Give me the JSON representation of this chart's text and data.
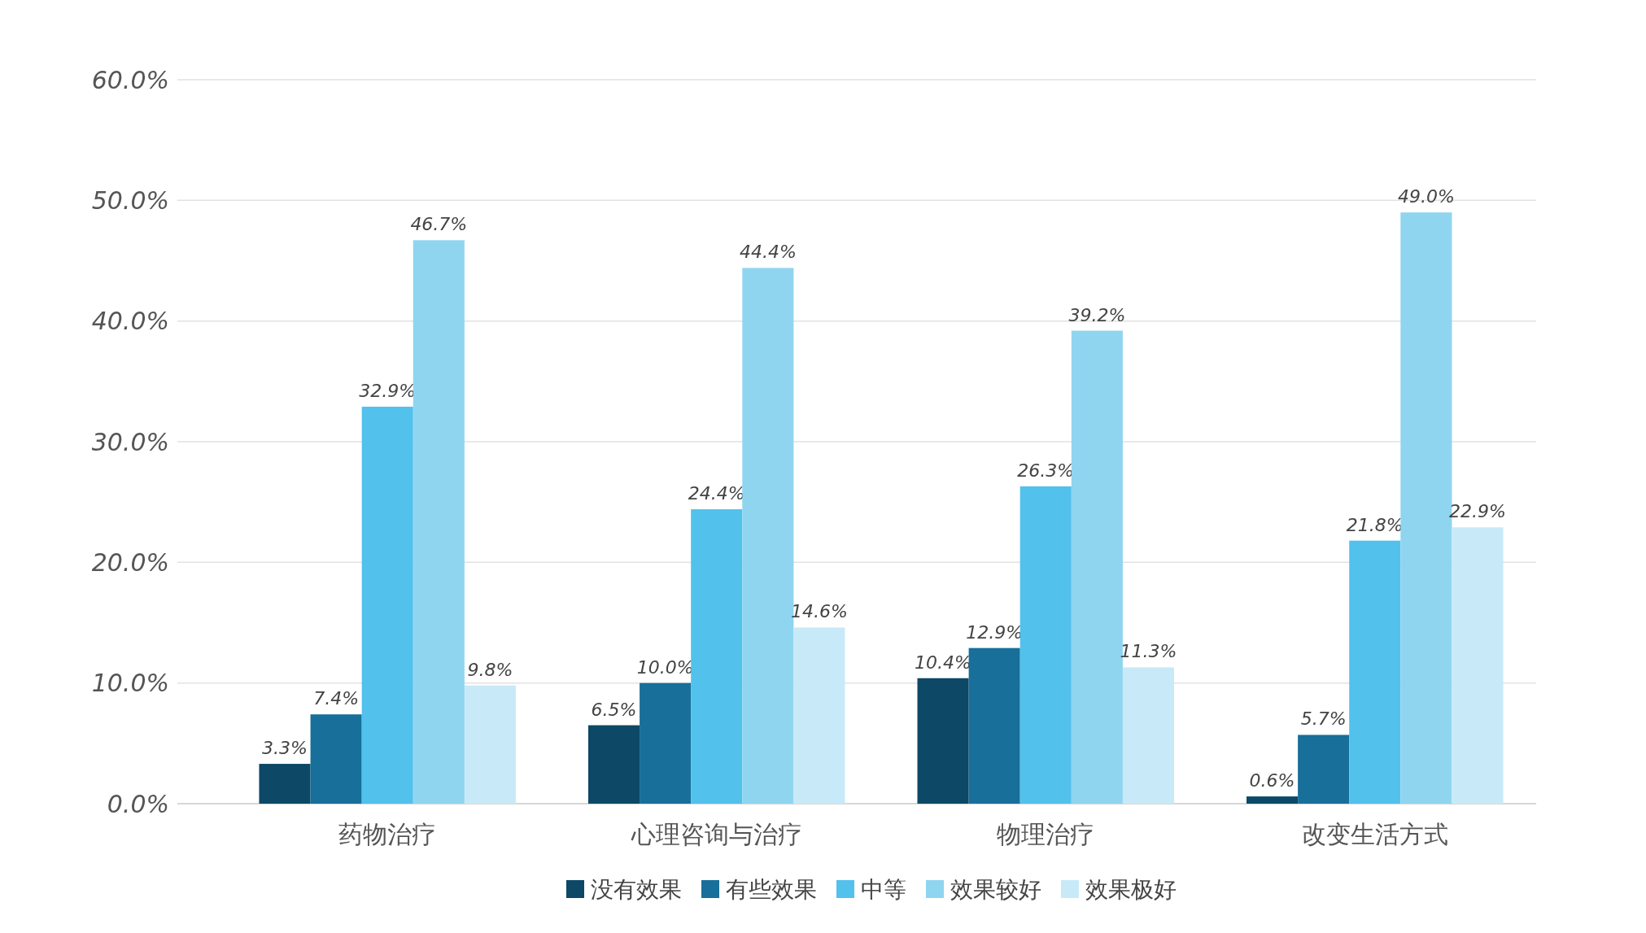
{
  "chart_data": {
    "type": "bar",
    "categories": [
      "药物治疗",
      "心理咨询与治疗",
      "物理治疗",
      "改变生活方式"
    ],
    "series": [
      {
        "name": "没有效果",
        "color": "#0d4866",
        "values": [
          3.3,
          6.5,
          10.4,
          0.6
        ],
        "value_labels": [
          "3.3%",
          "6.5%",
          "10.4%",
          "0.6%"
        ]
      },
      {
        "name": "有些效果",
        "color": "#176f9a",
        "values": [
          7.4,
          10.0,
          12.9,
          5.7
        ],
        "value_labels": [
          "7.4%",
          "10.0%",
          "12.9%",
          "5.7%"
        ]
      },
      {
        "name": "中等",
        "color": "#52c1ec",
        "values": [
          32.9,
          24.4,
          26.3,
          21.8
        ],
        "value_labels": [
          "32.9%",
          "24.4%",
          "26.3%",
          "21.8%"
        ]
      },
      {
        "name": "效果较好",
        "color": "#8fd5f0",
        "values": [
          46.7,
          44.4,
          39.2,
          49.0
        ],
        "value_labels": [
          "46.7%",
          "44.4%",
          "39.2%",
          "49.0%"
        ]
      },
      {
        "name": "效果极好",
        "color": "#c8eaf8",
        "values": [
          9.8,
          14.6,
          11.3,
          22.9
        ],
        "value_labels": [
          "9.8%",
          "14.6%",
          "11.3%",
          "22.9%"
        ]
      }
    ],
    "ylim": [
      0,
      60
    ],
    "yticks": [
      {
        "value": 0,
        "label": "0.0%"
      },
      {
        "value": 10,
        "label": "10.0%"
      },
      {
        "value": 20,
        "label": "20.0%"
      },
      {
        "value": 30,
        "label": "30.0%"
      },
      {
        "value": 40,
        "label": "40.0%"
      },
      {
        "value": 50,
        "label": "50.0%"
      },
      {
        "value": 60,
        "label": "60.0%"
      }
    ],
    "grid": "y",
    "legend": "bottom"
  }
}
